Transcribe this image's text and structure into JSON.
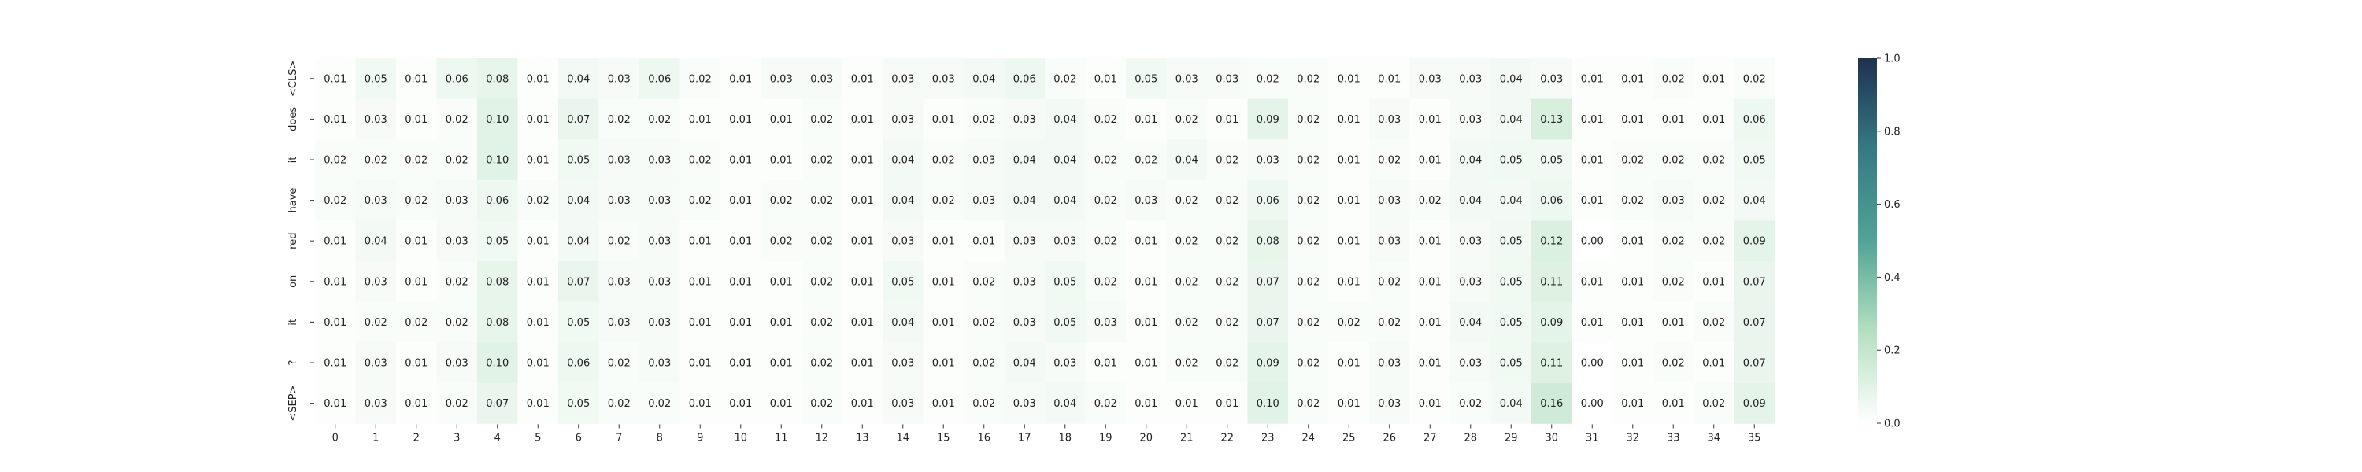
{
  "chart_data": {
    "type": "heatmap",
    "title": "",
    "xlabel": "",
    "ylabel": "",
    "x_labels": [
      "0",
      "1",
      "2",
      "3",
      "4",
      "5",
      "6",
      "7",
      "8",
      "9",
      "10",
      "11",
      "12",
      "13",
      "14",
      "15",
      "16",
      "17",
      "18",
      "19",
      "20",
      "21",
      "22",
      "23",
      "24",
      "25",
      "26",
      "27",
      "28",
      "29",
      "30",
      "31",
      "32",
      "33",
      "34",
      "35"
    ],
    "y_labels": [
      "<CLS>",
      "does",
      "it",
      "have",
      "red",
      "on",
      "it",
      "?",
      "<SEP>"
    ],
    "values": [
      [
        0.01,
        0.05,
        0.01,
        0.06,
        0.08,
        0.01,
        0.04,
        0.03,
        0.06,
        0.02,
        0.01,
        0.03,
        0.03,
        0.01,
        0.03,
        0.03,
        0.04,
        0.06,
        0.02,
        0.01,
        0.05,
        0.03,
        0.03,
        0.02,
        0.02,
        0.01,
        0.01,
        0.03,
        0.03,
        0.04,
        0.03,
        0.01,
        0.01,
        0.02,
        0.01,
        0.02
      ],
      [
        0.01,
        0.03,
        0.01,
        0.02,
        0.1,
        0.01,
        0.07,
        0.02,
        0.02,
        0.01,
        0.01,
        0.01,
        0.02,
        0.01,
        0.03,
        0.01,
        0.02,
        0.03,
        0.04,
        0.02,
        0.01,
        0.02,
        0.01,
        0.09,
        0.02,
        0.01,
        0.03,
        0.01,
        0.03,
        0.04,
        0.13,
        0.01,
        0.01,
        0.01,
        0.01,
        0.06
      ],
      [
        0.02,
        0.02,
        0.02,
        0.02,
        0.1,
        0.01,
        0.05,
        0.03,
        0.03,
        0.02,
        0.01,
        0.01,
        0.02,
        0.01,
        0.04,
        0.02,
        0.03,
        0.04,
        0.04,
        0.02,
        0.02,
        0.04,
        0.02,
        0.03,
        0.02,
        0.01,
        0.02,
        0.01,
        0.04,
        0.05,
        0.05,
        0.01,
        0.02,
        0.02,
        0.02,
        0.05
      ],
      [
        0.02,
        0.03,
        0.02,
        0.03,
        0.06,
        0.02,
        0.04,
        0.03,
        0.03,
        0.02,
        0.01,
        0.02,
        0.02,
        0.01,
        0.04,
        0.02,
        0.03,
        0.04,
        0.04,
        0.02,
        0.03,
        0.02,
        0.02,
        0.06,
        0.02,
        0.01,
        0.03,
        0.02,
        0.04,
        0.04,
        0.06,
        0.01,
        0.02,
        0.03,
        0.02,
        0.04
      ],
      [
        0.01,
        0.04,
        0.01,
        0.03,
        0.05,
        0.01,
        0.04,
        0.02,
        0.03,
        0.01,
        0.01,
        0.02,
        0.02,
        0.01,
        0.03,
        0.01,
        0.01,
        0.03,
        0.03,
        0.02,
        0.01,
        0.02,
        0.02,
        0.08,
        0.02,
        0.01,
        0.03,
        0.01,
        0.03,
        0.05,
        0.12,
        0.0,
        0.01,
        0.02,
        0.02,
        0.09
      ],
      [
        0.01,
        0.03,
        0.01,
        0.02,
        0.08,
        0.01,
        0.07,
        0.03,
        0.03,
        0.01,
        0.01,
        0.01,
        0.02,
        0.01,
        0.05,
        0.01,
        0.02,
        0.03,
        0.05,
        0.02,
        0.01,
        0.02,
        0.02,
        0.07,
        0.02,
        0.01,
        0.02,
        0.01,
        0.03,
        0.05,
        0.11,
        0.01,
        0.01,
        0.02,
        0.01,
        0.07
      ],
      [
        0.01,
        0.02,
        0.02,
        0.02,
        0.08,
        0.01,
        0.05,
        0.03,
        0.03,
        0.01,
        0.01,
        0.01,
        0.02,
        0.01,
        0.04,
        0.01,
        0.02,
        0.03,
        0.05,
        0.03,
        0.01,
        0.02,
        0.02,
        0.07,
        0.02,
        0.02,
        0.02,
        0.01,
        0.04,
        0.05,
        0.09,
        0.01,
        0.01,
        0.01,
        0.02,
        0.07
      ],
      [
        0.01,
        0.03,
        0.01,
        0.03,
        0.1,
        0.01,
        0.06,
        0.02,
        0.03,
        0.01,
        0.01,
        0.01,
        0.02,
        0.01,
        0.03,
        0.01,
        0.02,
        0.04,
        0.03,
        0.01,
        0.01,
        0.02,
        0.02,
        0.09,
        0.02,
        0.01,
        0.03,
        0.01,
        0.03,
        0.05,
        0.11,
        0.0,
        0.01,
        0.02,
        0.01,
        0.07
      ],
      [
        0.01,
        0.03,
        0.01,
        0.02,
        0.07,
        0.01,
        0.05,
        0.02,
        0.02,
        0.01,
        0.01,
        0.01,
        0.02,
        0.01,
        0.03,
        0.01,
        0.02,
        0.03,
        0.04,
        0.02,
        0.01,
        0.01,
        0.01,
        0.1,
        0.02,
        0.01,
        0.03,
        0.01,
        0.02,
        0.04,
        0.16,
        0.0,
        0.01,
        0.01,
        0.02,
        0.09
      ]
    ],
    "value_format": "2dp",
    "colorbar": {
      "min": 0.0,
      "max": 1.0,
      "ticks": [
        "0.0",
        "0.2",
        "0.4",
        "0.6",
        "0.8",
        "1.0"
      ],
      "colors": [
        "#ffffff",
        "#b4e0c0",
        "#52a396",
        "#357a84",
        "#1f3150"
      ]
    }
  }
}
